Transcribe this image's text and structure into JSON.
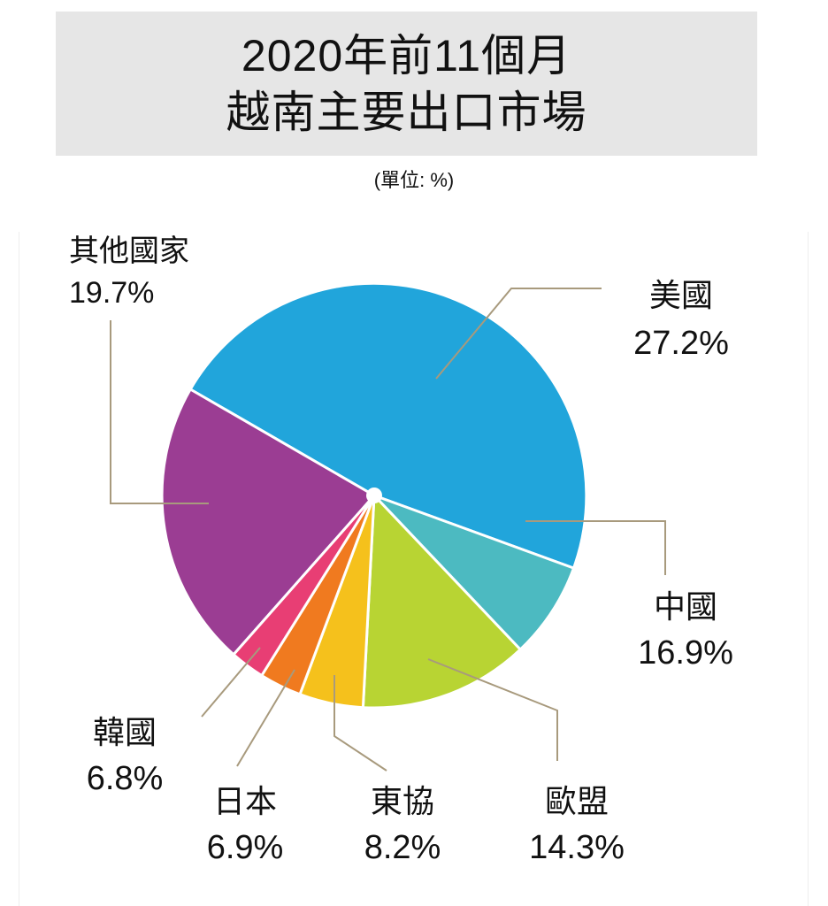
{
  "header": {
    "title_line1": "2020年前11個月",
    "title_line2": "越南主要出口市場",
    "unit": "(單位: %)"
  },
  "labels": {
    "other": {
      "name": "其他國家",
      "pct": "19.7%"
    },
    "usa": {
      "name": "美國",
      "pct": "27.2%"
    },
    "china": {
      "name": "中國",
      "pct": "16.9%"
    },
    "eu": {
      "name": "歐盟",
      "pct": "14.3%"
    },
    "asean": {
      "name": "東協",
      "pct": "8.2%"
    },
    "japan": {
      "name": "日本",
      "pct": "6.9%"
    },
    "korea": {
      "name": "韓國",
      "pct": "6.8%"
    }
  },
  "colors": {
    "usa": "#21a5db",
    "china": "#4cbac1",
    "eu": "#b8d433",
    "asean": "#f5c11c",
    "japan": "#f07a1f",
    "korea": "#e83e74",
    "other": "#9b3d93",
    "leader": "#a89a7d",
    "title_bg": "#e6e6e6"
  },
  "chart_data": {
    "type": "pie",
    "title": "2020年前11個月 越南主要出口市場",
    "subtitle": "(單位: %)",
    "categories": [
      "美國",
      "中國",
      "歐盟",
      "東協",
      "日本",
      "韓國",
      "其他國家"
    ],
    "values": [
      27.2,
      16.9,
      14.3,
      8.2,
      6.9,
      6.8,
      19.7
    ],
    "unit": "%",
    "legend": "none (direct labels with leader lines)"
  }
}
